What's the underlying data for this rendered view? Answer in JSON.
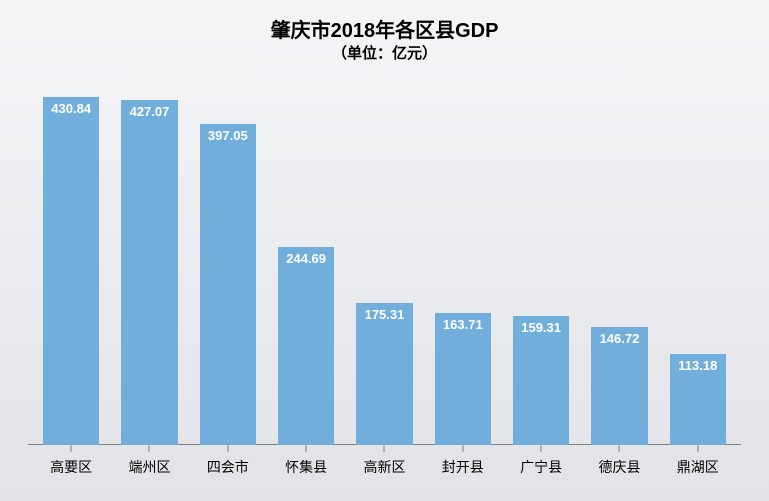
{
  "chart": {
    "type": "bar",
    "title": "肇庆市2018年各区县GDP",
    "subtitle": "（单位：亿元）",
    "title_fontsize": 20,
    "subtitle_fontsize": 15,
    "title_color": "#000000",
    "categories": [
      "高要区",
      "端州区",
      "四会市",
      "怀集县",
      "高新区",
      "封开县",
      "广宁县",
      "德庆县",
      "鼎湖区"
    ],
    "values": [
      430.84,
      427.07,
      397.05,
      244.69,
      175.31,
      163.71,
      159.31,
      146.72,
      113.18
    ],
    "value_labels": [
      "430.84",
      "427.07",
      "397.05",
      "244.69",
      "175.31",
      "163.71",
      "159.31",
      "146.72",
      "113.18"
    ],
    "bar_color": "#71aedb",
    "bar_label_color": "#ffffff",
    "bar_label_fontsize": 13,
    "x_label_fontsize": 14,
    "x_label_color": "#000000",
    "ymax": 460,
    "bar_width_ratio": 0.72,
    "axis_color": "#7f7f7f",
    "background": {
      "top": "#f4f5f7",
      "bottom": "#e1e3e7"
    }
  }
}
